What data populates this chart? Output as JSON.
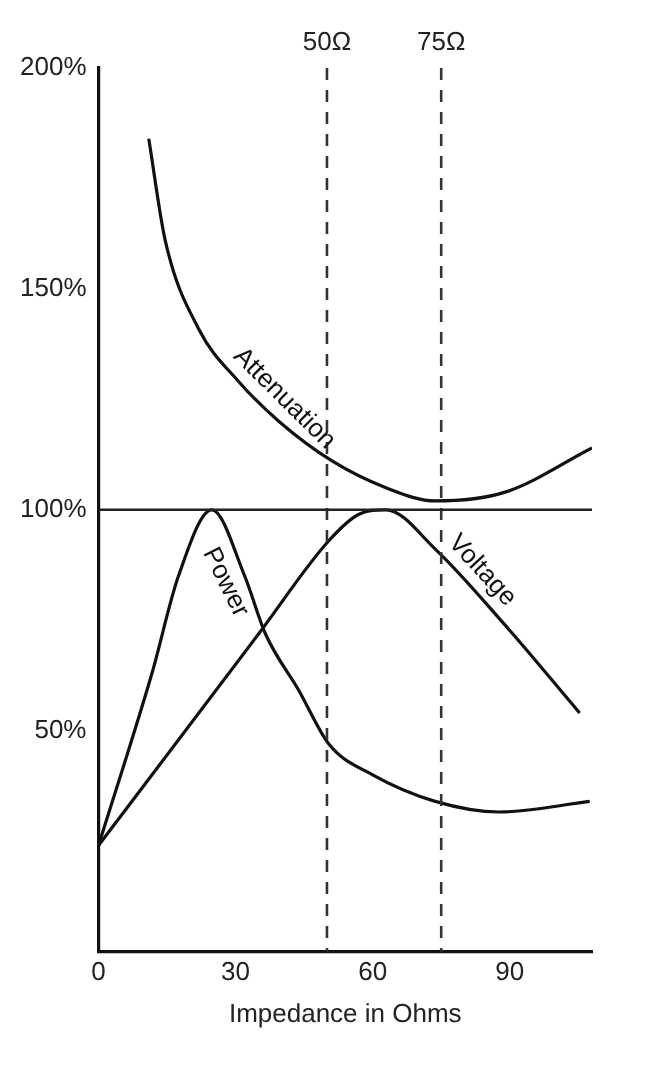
{
  "chart_data": {
    "type": "line",
    "xlabel": "Impedance in Ohms",
    "xlim": [
      0,
      108
    ],
    "xticks": [
      0,
      30,
      60,
      90
    ],
    "ylim": [
      0,
      200
    ],
    "yticks": [
      {
        "value": 50,
        "label": "50%"
      },
      {
        "value": 100,
        "label": "100%"
      },
      {
        "value": 150,
        "label": "150%"
      },
      {
        "value": 200,
        "label": "200%"
      }
    ],
    "grid": false,
    "legend": false,
    "marker": "none",
    "line_style": "solid",
    "ref_lines": [
      {
        "axis": "x",
        "value": 50,
        "label": "50Ω",
        "line_style": "dashed",
        "color": "#333333"
      },
      {
        "axis": "x",
        "value": 75,
        "label": "75Ω",
        "line_style": "dashed",
        "color": "#333333"
      },
      {
        "axis": "y",
        "value": 100,
        "label": null,
        "line_style": "solid",
        "color": "#222222"
      }
    ],
    "series": [
      {
        "name": "Attenuation",
        "color": "#111111",
        "x": [
          11,
          14.6,
          21.9,
          30.7,
          39.5,
          51.2,
          62.9,
          73.7,
          89,
          108
        ],
        "values": [
          184,
          161,
          141,
          129,
          120,
          111,
          105,
          102,
          104,
          114
        ]
      },
      {
        "name": "Power",
        "color": "#111111",
        "x": [
          0,
          11.7,
          17.5,
          24.8,
          32,
          36.5,
          43.9,
          50.4,
          60,
          73.7,
          87.7,
          107.5
        ],
        "values": [
          24,
          63,
          85,
          100,
          85,
          72,
          59,
          47,
          40,
          34,
          31.6,
          34
        ]
      },
      {
        "name": "Voltage",
        "color": "#111111",
        "x": [
          0,
          35.1,
          50.4,
          57,
          62.9,
          73.8,
          88.9,
          105.3
        ],
        "values": [
          24,
          72,
          93,
          99,
          100,
          91,
          74,
          54
        ]
      }
    ]
  }
}
